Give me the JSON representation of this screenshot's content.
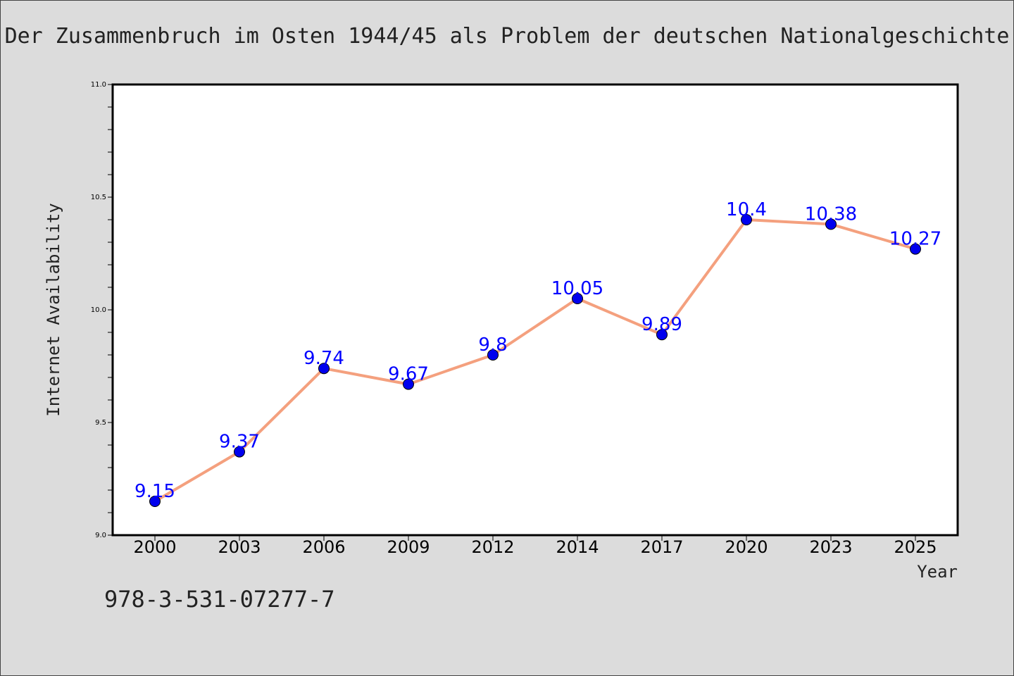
{
  "figure": {
    "title": "Der Zusammenbruch im Osten 1944/45 als Problem der deutschen Nationalgeschichte",
    "isbn": "978-3-531-07277-7"
  },
  "chart_data": {
    "type": "line",
    "title": "Der Zusammenbruch im Osten 1944/45 als Problem der deutschen Nationalgeschichte",
    "xlabel": "Year",
    "ylabel": "Internet Availability",
    "categories": [
      "2000",
      "2003",
      "2006",
      "2009",
      "2012",
      "2014",
      "2017",
      "2020",
      "2023",
      "2025"
    ],
    "series": [
      {
        "values": [
          9.15,
          9.37,
          9.74,
          9.67,
          9.8,
          10.05,
          9.89,
          10.4,
          10.38,
          10.27
        ],
        "data_labels": [
          "9.15",
          "9.37",
          "9.74",
          "9.67",
          "9.8",
          "10.05",
          "9.89",
          "10.4",
          "10.38",
          "10.27"
        ],
        "line_color": "#f4a07e",
        "marker_color": "#0000ee"
      }
    ],
    "ylim": [
      9.0,
      11.0
    ],
    "yticks": [
      "9.0",
      "9.5",
      "10.0",
      "10.5",
      "11.0"
    ],
    "grid": false,
    "legend": "none",
    "colors": {
      "background": "#dcdcdc",
      "plot_area": "#ffffff",
      "data_label": "#0000ff"
    }
  }
}
